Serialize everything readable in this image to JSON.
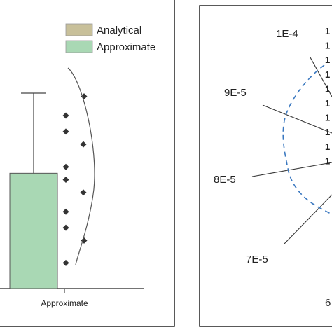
{
  "chart_data": [
    {
      "type": "bar",
      "categories": [
        "Approximate"
      ],
      "series": [
        {
          "name": "Analytical",
          "values": [
            null
          ],
          "color": "#c8c09a"
        },
        {
          "name": "Approximate",
          "values": [
            0.72
          ],
          "color": "#a9d8b4"
        }
      ],
      "error_bar": {
        "category": "Approximate",
        "upper": 1.22
      },
      "scatter_points": [
        1.2,
        1.08,
        0.98,
        0.9,
        0.76,
        0.68,
        0.6,
        0.48,
        0.38,
        0.3,
        0.16
      ],
      "legend": {
        "position": "top-right",
        "entries": [
          {
            "label": "Analytical",
            "color": "#c8c09a"
          },
          {
            "label": "Approximate",
            "color": "#a9d8b4"
          }
        ]
      },
      "ylim": [
        0,
        1.35
      ],
      "grid": false
    },
    {
      "type": "radar",
      "radial_labels": [
        "1E-4",
        "9E-5",
        "8E-5",
        "7E-5",
        "6"
      ],
      "bold_labels": [
        "1",
        "1",
        "1",
        "1",
        "1",
        "1",
        "1",
        "1",
        "1",
        "1"
      ],
      "series_style": "dashed",
      "series_color": "#3a78c0",
      "grid": false
    }
  ]
}
